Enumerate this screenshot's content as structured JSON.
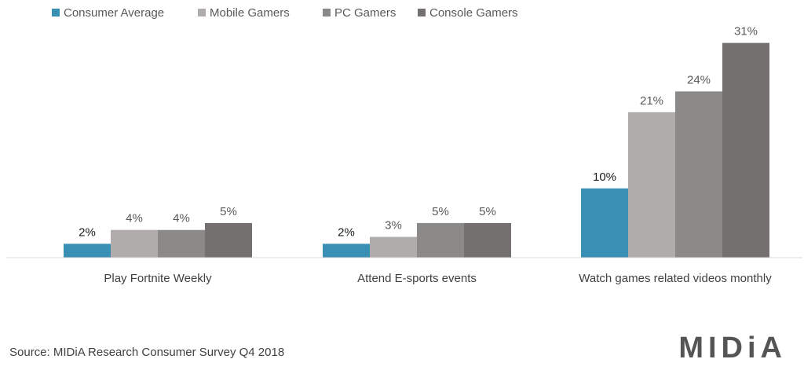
{
  "chart_data": {
    "type": "bar",
    "categories": [
      "Play Fortnite Weekly",
      "Attend E-sports events",
      "Watch games related videos monthly"
    ],
    "series": [
      {
        "name": "Consumer Average",
        "values": [
          2,
          2,
          10
        ],
        "labels": [
          "2%",
          "2%",
          "10%"
        ],
        "color": "#3a8fb4"
      },
      {
        "name": "Mobile Gamers",
        "values": [
          4,
          3,
          21
        ],
        "labels": [
          "4%",
          "3%",
          "21%"
        ],
        "color": "#b0acab"
      },
      {
        "name": "PC Gamers",
        "values": [
          4,
          5,
          24
        ],
        "labels": [
          "4%",
          "5%",
          "24%"
        ],
        "color": "#8c8a89"
      },
      {
        "name": "Console Gamers",
        "values": [
          5,
          5,
          31
        ],
        "labels": [
          "5%",
          "5%",
          "31%"
        ],
        "color": "#747070"
      }
    ],
    "ylim": [
      0,
      33
    ],
    "grid": false,
    "legend_position": "top-left",
    "value_label_color_first_series": "#1a1a1a",
    "value_label_color": "#595959"
  },
  "source": "Source: MIDiA Research Consumer Survey Q4 2018",
  "logo": "MIDiA"
}
